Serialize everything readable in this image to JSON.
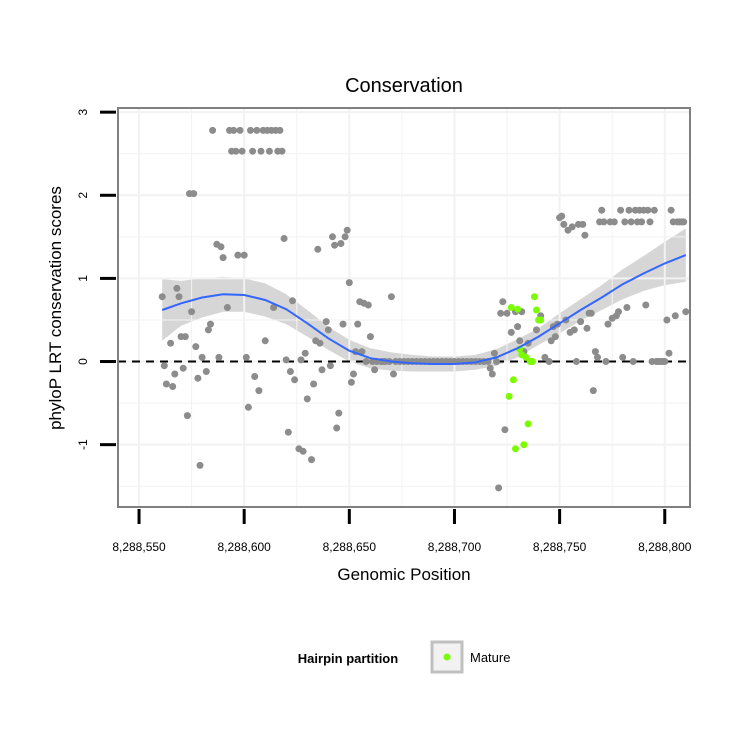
{
  "chart_data": {
    "type": "scatter",
    "title": "Conservation",
    "xlabel": "Genomic Position",
    "ylabel": "phyloP LRT conservation scores",
    "xlim": [
      8288540,
      8288812
    ],
    "ylim": [
      -1.75,
      3.05
    ],
    "x_ticks": [
      8288550,
      8288600,
      8288650,
      8288700,
      8288750,
      8288800
    ],
    "x_tick_labels": [
      "8,288,550",
      "8,288,600",
      "8,288,650",
      "8,288,700",
      "8,288,750",
      "8,288,800"
    ],
    "y_ticks": [
      -1,
      0,
      1,
      2,
      3
    ],
    "y_tick_labels": [
      "-1",
      "0",
      "1",
      "2",
      "3"
    ],
    "reference_line": {
      "y": 0,
      "style": "dashed"
    },
    "grid": true,
    "legend": {
      "title": "Hairpin partition",
      "position": "bottom",
      "entries": [
        {
          "label": "Mature",
          "color": "#7CFC00"
        }
      ]
    },
    "colors": {
      "points": "#8c8c8c",
      "mature": "#7CFC00",
      "smooth_line": "#3366FF",
      "ribbon": "#cfcfcf",
      "grid": "#f2f2f2",
      "panel_border": "#808080"
    },
    "series": [
      {
        "name": "Hairpin",
        "points": [
          [
            8288561,
            0.78
          ],
          [
            8288562,
            -0.05
          ],
          [
            8288563,
            -0.27
          ],
          [
            8288565,
            0.22
          ],
          [
            8288566,
            -0.3
          ],
          [
            8288567,
            -0.15
          ],
          [
            8288568,
            0.88
          ],
          [
            8288569,
            0.78
          ],
          [
            8288570,
            0.3
          ],
          [
            8288571,
            -0.08
          ],
          [
            8288572,
            0.3
          ],
          [
            8288573,
            -0.65
          ],
          [
            8288574,
            2.02
          ],
          [
            8288575,
            0.6
          ],
          [
            8288576,
            2.02
          ],
          [
            8288577,
            0.18
          ],
          [
            8288578,
            -0.2
          ],
          [
            8288579,
            -1.25
          ],
          [
            8288580,
            0.05
          ],
          [
            8288582,
            -0.12
          ],
          [
            8288583,
            0.38
          ],
          [
            8288584,
            0.45
          ],
          [
            8288585,
            2.78
          ],
          [
            8288587,
            1.41
          ],
          [
            8288588,
            0.05
          ],
          [
            8288589,
            1.38
          ],
          [
            8288590,
            1.25
          ],
          [
            8288592,
            0.65
          ],
          [
            8288593,
            2.78
          ],
          [
            8288594,
            2.53
          ],
          [
            8288595,
            2.78
          ],
          [
            8288596,
            2.53
          ],
          [
            8288597,
            1.28
          ],
          [
            8288598,
            2.78
          ],
          [
            8288599,
            2.53
          ],
          [
            8288600,
            1.28
          ],
          [
            8288601,
            0.05
          ],
          [
            8288602,
            -0.55
          ],
          [
            8288603,
            2.78
          ],
          [
            8288604,
            2.53
          ],
          [
            8288605,
            -0.18
          ],
          [
            8288606,
            2.78
          ],
          [
            8288607,
            -0.35
          ],
          [
            8288608,
            2.53
          ],
          [
            8288609,
            2.78
          ],
          [
            8288610,
            0.25
          ],
          [
            8288611,
            2.78
          ],
          [
            8288612,
            2.53
          ],
          [
            8288613,
            2.78
          ],
          [
            8288614,
            0.65
          ],
          [
            8288615,
            2.78
          ],
          [
            8288616,
            2.53
          ],
          [
            8288617,
            2.78
          ],
          [
            8288618,
            2.53
          ],
          [
            8288619,
            1.48
          ],
          [
            8288620,
            0.02
          ],
          [
            8288621,
            -0.85
          ],
          [
            8288622,
            -0.12
          ],
          [
            8288623,
            0.73
          ],
          [
            8288624,
            -0.22
          ],
          [
            8288626,
            -1.05
          ],
          [
            8288627,
            0.02
          ],
          [
            8288628,
            -1.08
          ],
          [
            8288629,
            0.1
          ],
          [
            8288630,
            -0.45
          ],
          [
            8288632,
            -1.18
          ],
          [
            8288633,
            -0.27
          ],
          [
            8288634,
            0.25
          ],
          [
            8288635,
            1.35
          ],
          [
            8288636,
            0.22
          ],
          [
            8288637,
            -0.1
          ],
          [
            8288639,
            0.48
          ],
          [
            8288640,
            0.38
          ],
          [
            8288641,
            -0.05
          ],
          [
            8288642,
            1.5
          ],
          [
            8288643,
            1.4
          ],
          [
            8288644,
            -0.8
          ],
          [
            8288645,
            -0.62
          ],
          [
            8288646,
            1.42
          ],
          [
            8288647,
            0.45
          ],
          [
            8288648,
            1.5
          ],
          [
            8288649,
            1.58
          ],
          [
            8288650,
            0.95
          ],
          [
            8288651,
            -0.25
          ],
          [
            8288652,
            -0.15
          ],
          [
            8288653,
            0.12
          ],
          [
            8288654,
            0.45
          ],
          [
            8288655,
            0.72
          ],
          [
            8288656,
            0.12
          ],
          [
            8288657,
            0.7
          ],
          [
            8288658,
            0.0
          ],
          [
            8288659,
            0.68
          ],
          [
            8288660,
            0.3
          ],
          [
            8288661,
            0.0
          ],
          [
            8288662,
            -0.1
          ],
          [
            8288663,
            0.0
          ],
          [
            8288665,
            0.0
          ],
          [
            8288666,
            0.0
          ],
          [
            8288667,
            0.0
          ],
          [
            8288669,
            0.0
          ],
          [
            8288670,
            0.78
          ],
          [
            8288671,
            -0.15
          ],
          [
            8288672,
            0.0
          ],
          [
            8288674,
            0.0
          ],
          [
            8288676,
            0.0
          ],
          [
            8288678,
            0.0
          ],
          [
            8288680,
            0.0
          ],
          [
            8288682,
            0.0
          ],
          [
            8288684,
            0.0
          ],
          [
            8288686,
            0.0
          ],
          [
            8288688,
            0.0
          ],
          [
            8288690,
            0.0
          ],
          [
            8288692,
            0.0
          ],
          [
            8288694,
            0.0
          ],
          [
            8288696,
            0.0
          ],
          [
            8288698,
            0.0
          ],
          [
            8288700,
            0.0
          ],
          [
            8288702,
            0.0
          ],
          [
            8288704,
            0.0
          ],
          [
            8288706,
            0.0
          ],
          [
            8288708,
            0.0
          ],
          [
            8288710,
            0.0
          ],
          [
            8288712,
            0.0
          ],
          [
            8288714,
            0.0
          ],
          [
            8288716,
            0.0
          ],
          [
            8288717,
            -0.08
          ],
          [
            8288718,
            -0.15
          ],
          [
            8288719,
            0.1
          ],
          [
            8288720,
            0.0
          ],
          [
            8288721,
            -1.52
          ],
          [
            8288722,
            0.58
          ],
          [
            8288723,
            0.72
          ],
          [
            8288724,
            -0.82
          ],
          [
            8288725,
            0.58
          ],
          [
            8288727,
            0.35
          ],
          [
            8288729,
            0.6
          ],
          [
            8288730,
            0.42
          ],
          [
            8288731,
            0.25
          ],
          [
            8288732,
            0.6
          ],
          [
            8288733,
            0.12
          ],
          [
            8288735,
            0.22
          ],
          [
            8288737,
            0.0
          ],
          [
            8288739,
            0.38
          ],
          [
            8288741,
            0.55
          ],
          [
            8288743,
            0.05
          ],
          [
            8288745,
            0.0
          ],
          [
            8288746,
            0.25
          ],
          [
            8288747,
            0.42
          ],
          [
            8288748,
            0.3
          ],
          [
            8288749,
            0.45
          ],
          [
            8288750,
            1.73
          ],
          [
            8288751,
            1.75
          ],
          [
            8288752,
            1.65
          ],
          [
            8288753,
            0.5
          ],
          [
            8288754,
            1.58
          ],
          [
            8288755,
            0.35
          ],
          [
            8288756,
            1.62
          ],
          [
            8288757,
            0.38
          ],
          [
            8288758,
            0.0
          ],
          [
            8288759,
            1.65
          ],
          [
            8288760,
            0.48
          ],
          [
            8288761,
            1.65
          ],
          [
            8288762,
            1.52
          ],
          [
            8288763,
            0.4
          ],
          [
            8288764,
            0.58
          ],
          [
            8288765,
            0.58
          ],
          [
            8288766,
            -0.35
          ],
          [
            8288767,
            0.12
          ],
          [
            8288768,
            0.05
          ],
          [
            8288769,
            1.68
          ],
          [
            8288770,
            1.82
          ],
          [
            8288771,
            1.68
          ],
          [
            8288772,
            0.0
          ],
          [
            8288773,
            0.45
          ],
          [
            8288774,
            1.68
          ],
          [
            8288775,
            0.52
          ],
          [
            8288776,
            1.68
          ],
          [
            8288777,
            0.55
          ],
          [
            8288778,
            0.6
          ],
          [
            8288779,
            1.82
          ],
          [
            8288780,
            0.05
          ],
          [
            8288781,
            1.68
          ],
          [
            8288782,
            0.65
          ],
          [
            8288783,
            1.82
          ],
          [
            8288784,
            1.68
          ],
          [
            8288785,
            0.0
          ],
          [
            8288786,
            1.82
          ],
          [
            8288787,
            1.68
          ],
          [
            8288788,
            1.82
          ],
          [
            8288789,
            1.68
          ],
          [
            8288790,
            1.82
          ],
          [
            8288791,
            0.68
          ],
          [
            8288792,
            1.82
          ],
          [
            8288793,
            1.68
          ],
          [
            8288794,
            0.0
          ],
          [
            8288795,
            1.82
          ],
          [
            8288796,
            0.0
          ],
          [
            8288797,
            0.0
          ],
          [
            8288798,
            0.0
          ],
          [
            8288799,
            0.0
          ],
          [
            8288800,
            0.0
          ],
          [
            8288801,
            0.5
          ],
          [
            8288802,
            0.1
          ],
          [
            8288803,
            1.82
          ],
          [
            8288804,
            1.68
          ],
          [
            8288805,
            0.55
          ],
          [
            8288806,
            1.68
          ],
          [
            8288807,
            1.68
          ],
          [
            8288808,
            1.68
          ],
          [
            8288809,
            1.68
          ],
          [
            8288810,
            0.6
          ]
        ]
      },
      {
        "name": "Mature",
        "points": [
          [
            8288726,
            -0.42
          ],
          [
            8288727,
            0.65
          ],
          [
            8288728,
            -0.22
          ],
          [
            8288729,
            -1.05
          ],
          [
            8288730,
            0.63
          ],
          [
            8288731,
            0.15
          ],
          [
            8288732,
            0.08
          ],
          [
            8288733,
            -1.0
          ],
          [
            8288734,
            0.05
          ],
          [
            8288735,
            -0.75
          ],
          [
            8288736,
            0.0
          ],
          [
            8288737,
            0.0
          ],
          [
            8288738,
            0.78
          ],
          [
            8288739,
            0.62
          ],
          [
            8288740,
            0.5
          ],
          [
            8288741,
            0.5
          ]
        ]
      }
    ],
    "smooth": {
      "x": [
        8288561,
        8288570,
        8288580,
        8288590,
        8288600,
        8288610,
        8288620,
        8288630,
        8288640,
        8288650,
        8288660,
        8288670,
        8288680,
        8288690,
        8288700,
        8288710,
        8288720,
        8288730,
        8288740,
        8288750,
        8288760,
        8288770,
        8288780,
        8288790,
        8288800,
        8288810
      ],
      "y": [
        0.62,
        0.7,
        0.77,
        0.81,
        0.8,
        0.74,
        0.63,
        0.46,
        0.28,
        0.13,
        0.04,
        0.0,
        -0.02,
        -0.03,
        -0.03,
        -0.01,
        0.05,
        0.16,
        0.3,
        0.46,
        0.62,
        0.77,
        0.93,
        1.06,
        1.18,
        1.28
      ],
      "lower": [
        0.25,
        0.43,
        0.53,
        0.6,
        0.6,
        0.54,
        0.45,
        0.3,
        0.14,
        0.0,
        -0.08,
        -0.11,
        -0.12,
        -0.12,
        -0.12,
        -0.1,
        -0.05,
        0.05,
        0.2,
        0.34,
        0.49,
        0.62,
        0.75,
        0.85,
        0.92,
        0.96
      ],
      "upper": [
        0.99,
        0.97,
        1.0,
        1.02,
        1.0,
        0.94,
        0.81,
        0.62,
        0.42,
        0.26,
        0.16,
        0.11,
        0.08,
        0.06,
        0.06,
        0.08,
        0.15,
        0.27,
        0.4,
        0.58,
        0.75,
        0.92,
        1.11,
        1.27,
        1.44,
        1.6
      ]
    }
  }
}
